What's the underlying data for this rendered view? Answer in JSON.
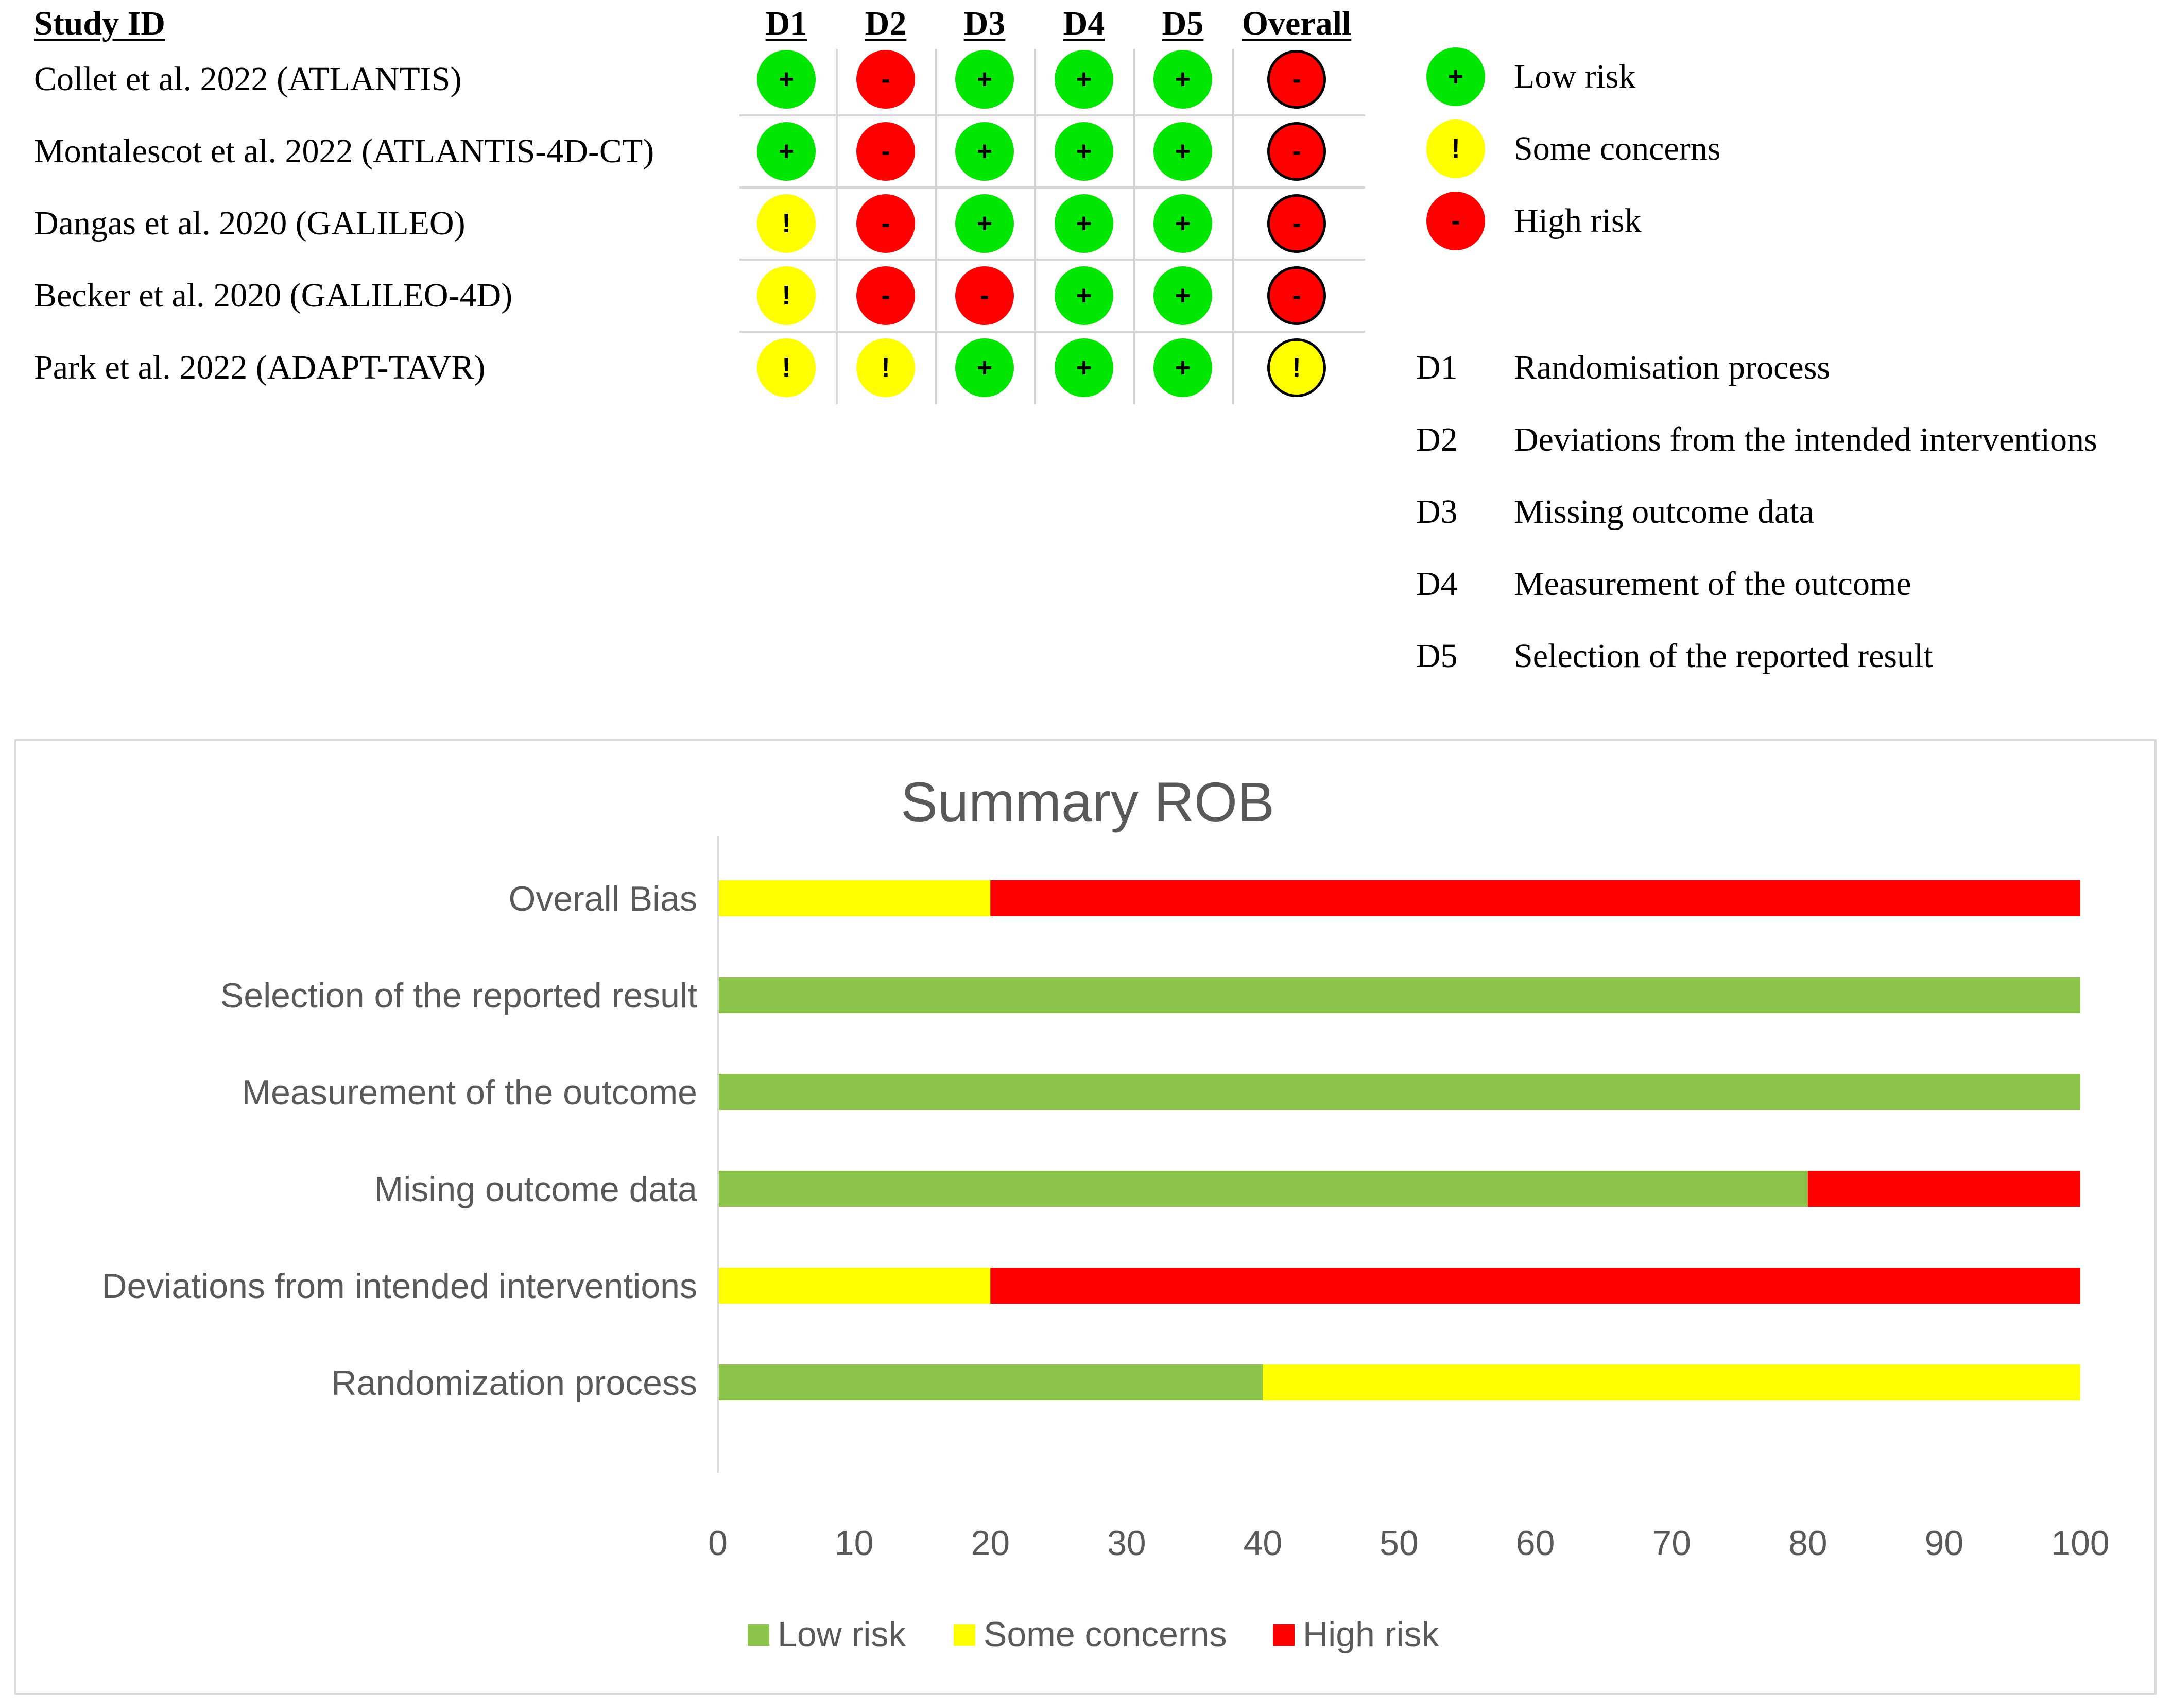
{
  "table": {
    "header_study": "Study ID",
    "domains": [
      "D1",
      "D2",
      "D3",
      "D4",
      "D5",
      "Overall"
    ],
    "studies": [
      {
        "name": "Collet et al. 2022 (ATLANTIS)",
        "judgements": [
          "low",
          "high",
          "low",
          "low",
          "low",
          "high"
        ]
      },
      {
        "name": "Montalescot et al. 2022 (ATLANTIS-4D-CT)",
        "judgements": [
          "low",
          "high",
          "low",
          "low",
          "low",
          "high"
        ]
      },
      {
        "name": "Dangas et al. 2020 (GALILEO)",
        "judgements": [
          "some",
          "high",
          "low",
          "low",
          "low",
          "high"
        ]
      },
      {
        "name": "Becker et al. 2020 (GALILEO-4D)",
        "judgements": [
          "some",
          "high",
          "high",
          "low",
          "low",
          "high"
        ]
      },
      {
        "name": "Park et al. 2022 (ADAPT-TAVR)",
        "judgements": [
          "some",
          "some",
          "low",
          "low",
          "low",
          "some"
        ]
      }
    ]
  },
  "symbols": {
    "low": "+",
    "some": "!",
    "high": "-"
  },
  "legend": {
    "judgements": [
      {
        "key": "low",
        "label": "Low risk"
      },
      {
        "key": "some",
        "label": "Some concerns"
      },
      {
        "key": "high",
        "label": "High risk"
      }
    ],
    "domains": [
      {
        "code": "D1",
        "label": "Randomisation process"
      },
      {
        "code": "D2",
        "label": "Deviations from the intended interventions"
      },
      {
        "code": "D3",
        "label": "Missing outcome data"
      },
      {
        "code": "D4",
        "label": "Measurement of the outcome"
      },
      {
        "code": "D5",
        "label": "Selection of the reported result"
      }
    ]
  },
  "colors": {
    "dot_low": "#00e600",
    "dot_some": "#ffff00",
    "dot_high": "#ff0000",
    "bar_low": "#8cc34a",
    "bar_some": "#ffff00",
    "bar_high": "#ff0000"
  },
  "chart_data": {
    "type": "bar",
    "orientation": "horizontal",
    "stacked": true,
    "title": "Summary ROB",
    "categories": [
      "Overall Bias",
      "Selection of the reported result",
      "Measurement of the outcome",
      "Mising outcome data",
      "Deviations from intended interventions",
      "Randomization process"
    ],
    "series": [
      {
        "name": "Low risk",
        "values": [
          0,
          100,
          100,
          80,
          0,
          40
        ]
      },
      {
        "name": "Some concerns",
        "values": [
          20,
          0,
          0,
          0,
          20,
          60
        ]
      },
      {
        "name": "High risk",
        "values": [
          80,
          0,
          0,
          20,
          80,
          0
        ]
      }
    ],
    "xlim": [
      0,
      100
    ],
    "xticks": [
      "0",
      "10",
      "20",
      "30",
      "40",
      "50",
      "60",
      "70",
      "80",
      "90",
      "100"
    ],
    "grid": false,
    "legend_position": "bottom"
  }
}
